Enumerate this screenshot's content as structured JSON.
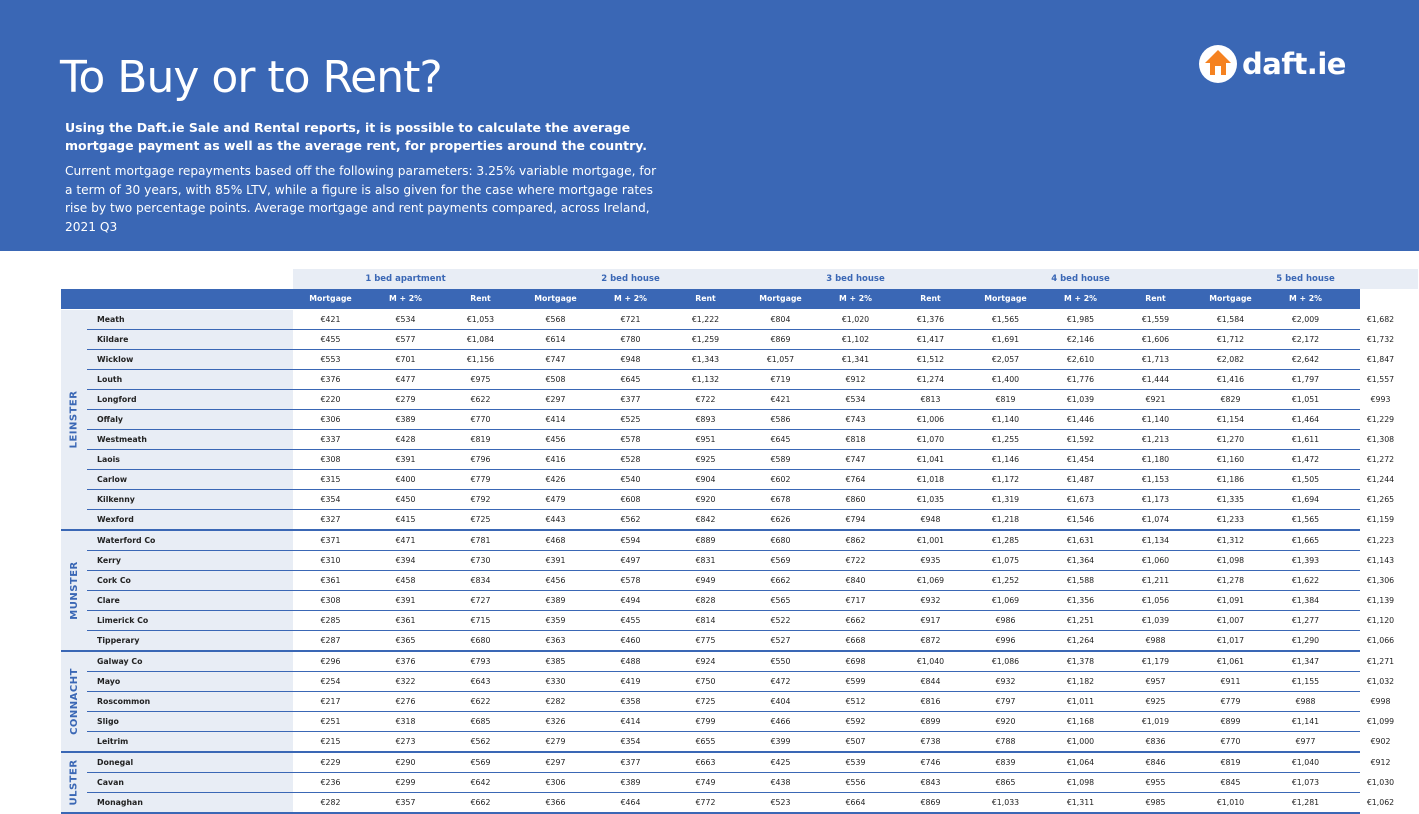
{
  "header": {
    "title": "To Buy or to Rent?",
    "lead": "Using the Daft.ie Sale and Rental reports, it is possible to calculate the average mortgage payment as well as the average rent, for properties around the country.",
    "description": "Current mortgage repayments based off the following parameters: 3.25% variable mortgage, for a term of 30 years, with 85% LTV, while a figure is also given for the case where mortgage rates rise by two percentage points. Average mortgage and rent payments compared, across Ireland, 2021 Q3",
    "logo_text": "daft.ie",
    "logo_icon": "house-icon",
    "brand_color": "#3a67b5",
    "accent_color": "#f58220"
  },
  "table": {
    "groups": [
      "1 bed apartment",
      "2 bed house",
      "3 bed house",
      "4 bed house",
      "5 bed house"
    ],
    "subcolumns": [
      "Mortgage",
      "M + 2%",
      "Rent"
    ],
    "regions": [
      {
        "name": "LEINSTER",
        "rows": [
          {
            "county": "Meath",
            "values": [
              "€421",
              "€534",
              "€1,053",
              "€568",
              "€721",
              "€1,222",
              "€804",
              "€1,020",
              "€1,376",
              "€1,565",
              "€1,985",
              "€1,559",
              "€1,584",
              "€2,009",
              "€1,682"
            ]
          },
          {
            "county": "Kildare",
            "values": [
              "€455",
              "€577",
              "€1,084",
              "€614",
              "€780",
              "€1,259",
              "€869",
              "€1,102",
              "€1,417",
              "€1,691",
              "€2,146",
              "€1,606",
              "€1,712",
              "€2,172",
              "€1,732"
            ]
          },
          {
            "county": "Wicklow",
            "values": [
              "€553",
              "€701",
              "€1,156",
              "€747",
              "€948",
              "€1,343",
              "€1,057",
              "€1,341",
              "€1,512",
              "€2,057",
              "€2,610",
              "€1,713",
              "€2,082",
              "€2,642",
              "€1,847"
            ]
          },
          {
            "county": "Louth",
            "values": [
              "€376",
              "€477",
              "€975",
              "€508",
              "€645",
              "€1,132",
              "€719",
              "€912",
              "€1,274",
              "€1,400",
              "€1,776",
              "€1,444",
              "€1,416",
              "€1,797",
              "€1,557"
            ]
          },
          {
            "county": "Longford",
            "values": [
              "€220",
              "€279",
              "€622",
              "€297",
              "€377",
              "€722",
              "€421",
              "€534",
              "€813",
              "€819",
              "€1,039",
              "€921",
              "€829",
              "€1,051",
              "€993"
            ]
          },
          {
            "county": "Offaly",
            "values": [
              "€306",
              "€389",
              "€770",
              "€414",
              "€525",
              "€893",
              "€586",
              "€743",
              "€1,006",
              "€1,140",
              "€1,446",
              "€1,140",
              "€1,154",
              "€1,464",
              "€1,229"
            ]
          },
          {
            "county": "Westmeath",
            "values": [
              "€337",
              "€428",
              "€819",
              "€456",
              "€578",
              "€951",
              "€645",
              "€818",
              "€1,070",
              "€1,255",
              "€1,592",
              "€1,213",
              "€1,270",
              "€1,611",
              "€1,308"
            ]
          },
          {
            "county": "Laois",
            "values": [
              "€308",
              "€391",
              "€796",
              "€416",
              "€528",
              "€925",
              "€589",
              "€747",
              "€1,041",
              "€1,146",
              "€1,454",
              "€1,180",
              "€1,160",
              "€1,472",
              "€1,272"
            ]
          },
          {
            "county": "Carlow",
            "values": [
              "€315",
              "€400",
              "€779",
              "€426",
              "€540",
              "€904",
              "€602",
              "€764",
              "€1,018",
              "€1,172",
              "€1,487",
              "€1,153",
              "€1,186",
              "€1,505",
              "€1,244"
            ]
          },
          {
            "county": "Kilkenny",
            "values": [
              "€354",
              "€450",
              "€792",
              "€479",
              "€608",
              "€920",
              "€678",
              "€860",
              "€1,035",
              "€1,319",
              "€1,673",
              "€1,173",
              "€1,335",
              "€1,694",
              "€1,265"
            ]
          },
          {
            "county": "Wexford",
            "values": [
              "€327",
              "€415",
              "€725",
              "€443",
              "€562",
              "€842",
              "€626",
              "€794",
              "€948",
              "€1,218",
              "€1,546",
              "€1,074",
              "€1,233",
              "€1,565",
              "€1,159"
            ]
          }
        ]
      },
      {
        "name": "MUNSTER",
        "rows": [
          {
            "county": "Waterford Co",
            "values": [
              "€371",
              "€471",
              "€781",
              "€468",
              "€594",
              "€889",
              "€680",
              "€862",
              "€1,001",
              "€1,285",
              "€1,631",
              "€1,134",
              "€1,312",
              "€1,665",
              "€1,223"
            ]
          },
          {
            "county": "Kerry",
            "values": [
              "€310",
              "€394",
              "€730",
              "€391",
              "€497",
              "€831",
              "€569",
              "€722",
              "€935",
              "€1,075",
              "€1,364",
              "€1,060",
              "€1,098",
              "€1,393",
              "€1,143"
            ]
          },
          {
            "county": "Cork Co",
            "values": [
              "€361",
              "€458",
              "€834",
              "€456",
              "€578",
              "€949",
              "€662",
              "€840",
              "€1,069",
              "€1,252",
              "€1,588",
              "€1,211",
              "€1,278",
              "€1,622",
              "€1,306"
            ]
          },
          {
            "county": "Clare",
            "values": [
              "€308",
              "€391",
              "€727",
              "€389",
              "€494",
              "€828",
              "€565",
              "€717",
              "€932",
              "€1,069",
              "€1,356",
              "€1,056",
              "€1,091",
              "€1,384",
              "€1,139"
            ]
          },
          {
            "county": "Limerick Co",
            "values": [
              "€285",
              "€361",
              "€715",
              "€359",
              "€455",
              "€814",
              "€522",
              "€662",
              "€917",
              "€986",
              "€1,251",
              "€1,039",
              "€1,007",
              "€1,277",
              "€1,120"
            ]
          },
          {
            "county": "Tipperary",
            "values": [
              "€287",
              "€365",
              "€680",
              "€363",
              "€460",
              "€775",
              "€527",
              "€668",
              "€872",
              "€996",
              "€1,264",
              "€988",
              "€1,017",
              "€1,290",
              "€1,066"
            ]
          }
        ]
      },
      {
        "name": "CONNACHT",
        "rows": [
          {
            "county": "Galway Co",
            "values": [
              "€296",
              "€376",
              "€793",
              "€385",
              "€488",
              "€924",
              "€550",
              "€698",
              "€1,040",
              "€1,086",
              "€1,378",
              "€1,179",
              "€1,061",
              "€1,347",
              "€1,271"
            ]
          },
          {
            "county": "Mayo",
            "values": [
              "€254",
              "€322",
              "€643",
              "€330",
              "€419",
              "€750",
              "€472",
              "€599",
              "€844",
              "€932",
              "€1,182",
              "€957",
              "€911",
              "€1,155",
              "€1,032"
            ]
          },
          {
            "county": "Roscommon",
            "values": [
              "€217",
              "€276",
              "€622",
              "€282",
              "€358",
              "€725",
              "€404",
              "€512",
              "€816",
              "€797",
              "€1,011",
              "€925",
              "€779",
              "€988",
              "€998"
            ]
          },
          {
            "county": "Sligo",
            "values": [
              "€251",
              "€318",
              "€685",
              "€326",
              "€414",
              "€799",
              "€466",
              "€592",
              "€899",
              "€920",
              "€1,168",
              "€1,019",
              "€899",
              "€1,141",
              "€1,099"
            ]
          },
          {
            "county": "Leitrim",
            "values": [
              "€215",
              "€273",
              "€562",
              "€279",
              "€354",
              "€655",
              "€399",
              "€507",
              "€738",
              "€788",
              "€1,000",
              "€836",
              "€770",
              "€977",
              "€902"
            ]
          }
        ]
      },
      {
        "name": "ULSTER",
        "rows": [
          {
            "county": "Donegal",
            "values": [
              "€229",
              "€290",
              "€569",
              "€297",
              "€377",
              "€663",
              "€425",
              "€539",
              "€746",
              "€839",
              "€1,064",
              "€846",
              "€819",
              "€1,040",
              "€912"
            ]
          },
          {
            "county": "Cavan",
            "values": [
              "€236",
              "€299",
              "€642",
              "€306",
              "€389",
              "€749",
              "€438",
              "€556",
              "€843",
              "€865",
              "€1,098",
              "€955",
              "€845",
              "€1,073",
              "€1,030"
            ]
          },
          {
            "county": "Monaghan",
            "values": [
              "€282",
              "€357",
              "€662",
              "€366",
              "€464",
              "€772",
              "€523",
              "€664",
              "€869",
              "€1,033",
              "€1,311",
              "€985",
              "€1,010",
              "€1,281",
              "€1,062"
            ]
          }
        ]
      }
    ]
  }
}
